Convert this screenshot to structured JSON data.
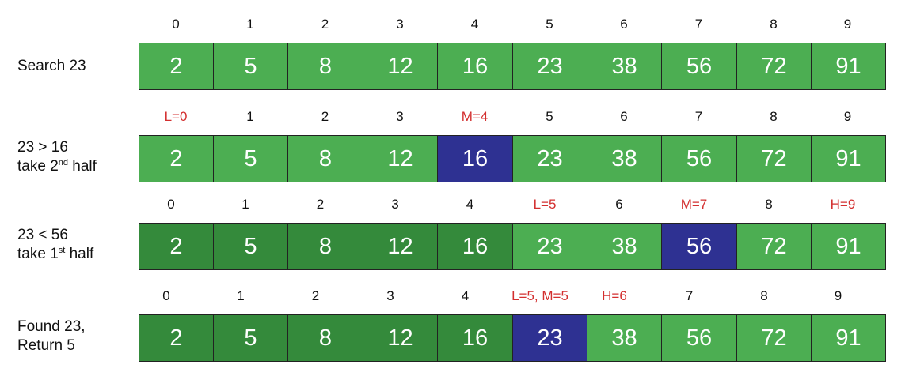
{
  "colors": {
    "active": "#4cae52",
    "discarded": "#348a3b",
    "mid": "#2e3192",
    "pointer_text": "#d32f2f"
  },
  "steps": [
    {
      "label_parts": [
        {
          "t": "Search 23"
        }
      ],
      "indices": [
        {
          "text": "0",
          "red": false
        },
        {
          "text": "1",
          "red": false
        },
        {
          "text": "2",
          "red": false
        },
        {
          "text": "3",
          "red": false
        },
        {
          "text": "4",
          "red": false
        },
        {
          "text": "5",
          "red": false
        },
        {
          "text": "6",
          "red": false
        },
        {
          "text": "7",
          "red": false
        },
        {
          "text": "8",
          "red": false
        },
        {
          "text": "9",
          "red": false
        }
      ],
      "cells": [
        {
          "value": "2",
          "state": "light"
        },
        {
          "value": "5",
          "state": "light"
        },
        {
          "value": "8",
          "state": "light"
        },
        {
          "value": "12",
          "state": "light"
        },
        {
          "value": "16",
          "state": "light"
        },
        {
          "value": "23",
          "state": "light"
        },
        {
          "value": "38",
          "state": "light"
        },
        {
          "value": "56",
          "state": "light"
        },
        {
          "value": "72",
          "state": "light"
        },
        {
          "value": "91",
          "state": "light"
        }
      ]
    },
    {
      "label_parts": [
        {
          "t": "23 > 16"
        },
        {
          "br": true
        },
        {
          "t": "take 2"
        },
        {
          "sup": "nd"
        },
        {
          "t": " half"
        }
      ],
      "indices": [
        {
          "text": "L=0",
          "red": true
        },
        {
          "text": "1",
          "red": false
        },
        {
          "text": "2",
          "red": false
        },
        {
          "text": "3",
          "red": false
        },
        {
          "text": "M=4",
          "red": true
        },
        {
          "text": "5",
          "red": false
        },
        {
          "text": "6",
          "red": false
        },
        {
          "text": "7",
          "red": false
        },
        {
          "text": "8",
          "red": false
        },
        {
          "text": "9",
          "red": false
        }
      ],
      "cells": [
        {
          "value": "2",
          "state": "light"
        },
        {
          "value": "5",
          "state": "light"
        },
        {
          "value": "8",
          "state": "light"
        },
        {
          "value": "12",
          "state": "light"
        },
        {
          "value": "16",
          "state": "mid"
        },
        {
          "value": "23",
          "state": "light"
        },
        {
          "value": "38",
          "state": "light"
        },
        {
          "value": "56",
          "state": "light"
        },
        {
          "value": "72",
          "state": "light"
        },
        {
          "value": "91",
          "state": "light"
        }
      ]
    },
    {
      "label_parts": [
        {
          "t": "23 < 56"
        },
        {
          "br": true
        },
        {
          "t": "take 1"
        },
        {
          "sup": "st"
        },
        {
          "t": " half"
        }
      ],
      "indices": [
        {
          "text": "0",
          "red": false
        },
        {
          "text": "1",
          "red": false
        },
        {
          "text": "2",
          "red": false
        },
        {
          "text": "3",
          "red": false
        },
        {
          "text": "4",
          "red": false
        },
        {
          "text": "L=5",
          "red": true
        },
        {
          "text": "6",
          "red": false
        },
        {
          "text": "M=7",
          "red": true
        },
        {
          "text": "8",
          "red": false
        },
        {
          "text": "H=9",
          "red": true
        }
      ],
      "cells": [
        {
          "value": "2",
          "state": "dark"
        },
        {
          "value": "5",
          "state": "dark"
        },
        {
          "value": "8",
          "state": "dark"
        },
        {
          "value": "12",
          "state": "dark"
        },
        {
          "value": "16",
          "state": "dark"
        },
        {
          "value": "23",
          "state": "light"
        },
        {
          "value": "38",
          "state": "light"
        },
        {
          "value": "56",
          "state": "mid"
        },
        {
          "value": "72",
          "state": "light"
        },
        {
          "value": "91",
          "state": "light"
        }
      ]
    },
    {
      "label_parts": [
        {
          "t": "Found 23,"
        },
        {
          "br": true
        },
        {
          "t": "Return 5"
        }
      ],
      "indices": [
        {
          "text": "0",
          "red": false
        },
        {
          "text": "1",
          "red": false
        },
        {
          "text": "2",
          "red": false
        },
        {
          "text": "3",
          "red": false
        },
        {
          "text": "4",
          "red": false
        },
        {
          "text": "L=5, M=5",
          "red": true
        },
        {
          "text": "H=6",
          "red": true
        },
        {
          "text": "7",
          "red": false
        },
        {
          "text": "8",
          "red": false
        },
        {
          "text": "9",
          "red": false
        }
      ],
      "cells": [
        {
          "value": "2",
          "state": "dark"
        },
        {
          "value": "5",
          "state": "dark"
        },
        {
          "value": "8",
          "state": "dark"
        },
        {
          "value": "12",
          "state": "dark"
        },
        {
          "value": "16",
          "state": "dark"
        },
        {
          "value": "23",
          "state": "mid"
        },
        {
          "value": "38",
          "state": "light"
        },
        {
          "value": "56",
          "state": "light"
        },
        {
          "value": "72",
          "state": "light"
        },
        {
          "value": "91",
          "state": "light"
        }
      ]
    }
  ]
}
